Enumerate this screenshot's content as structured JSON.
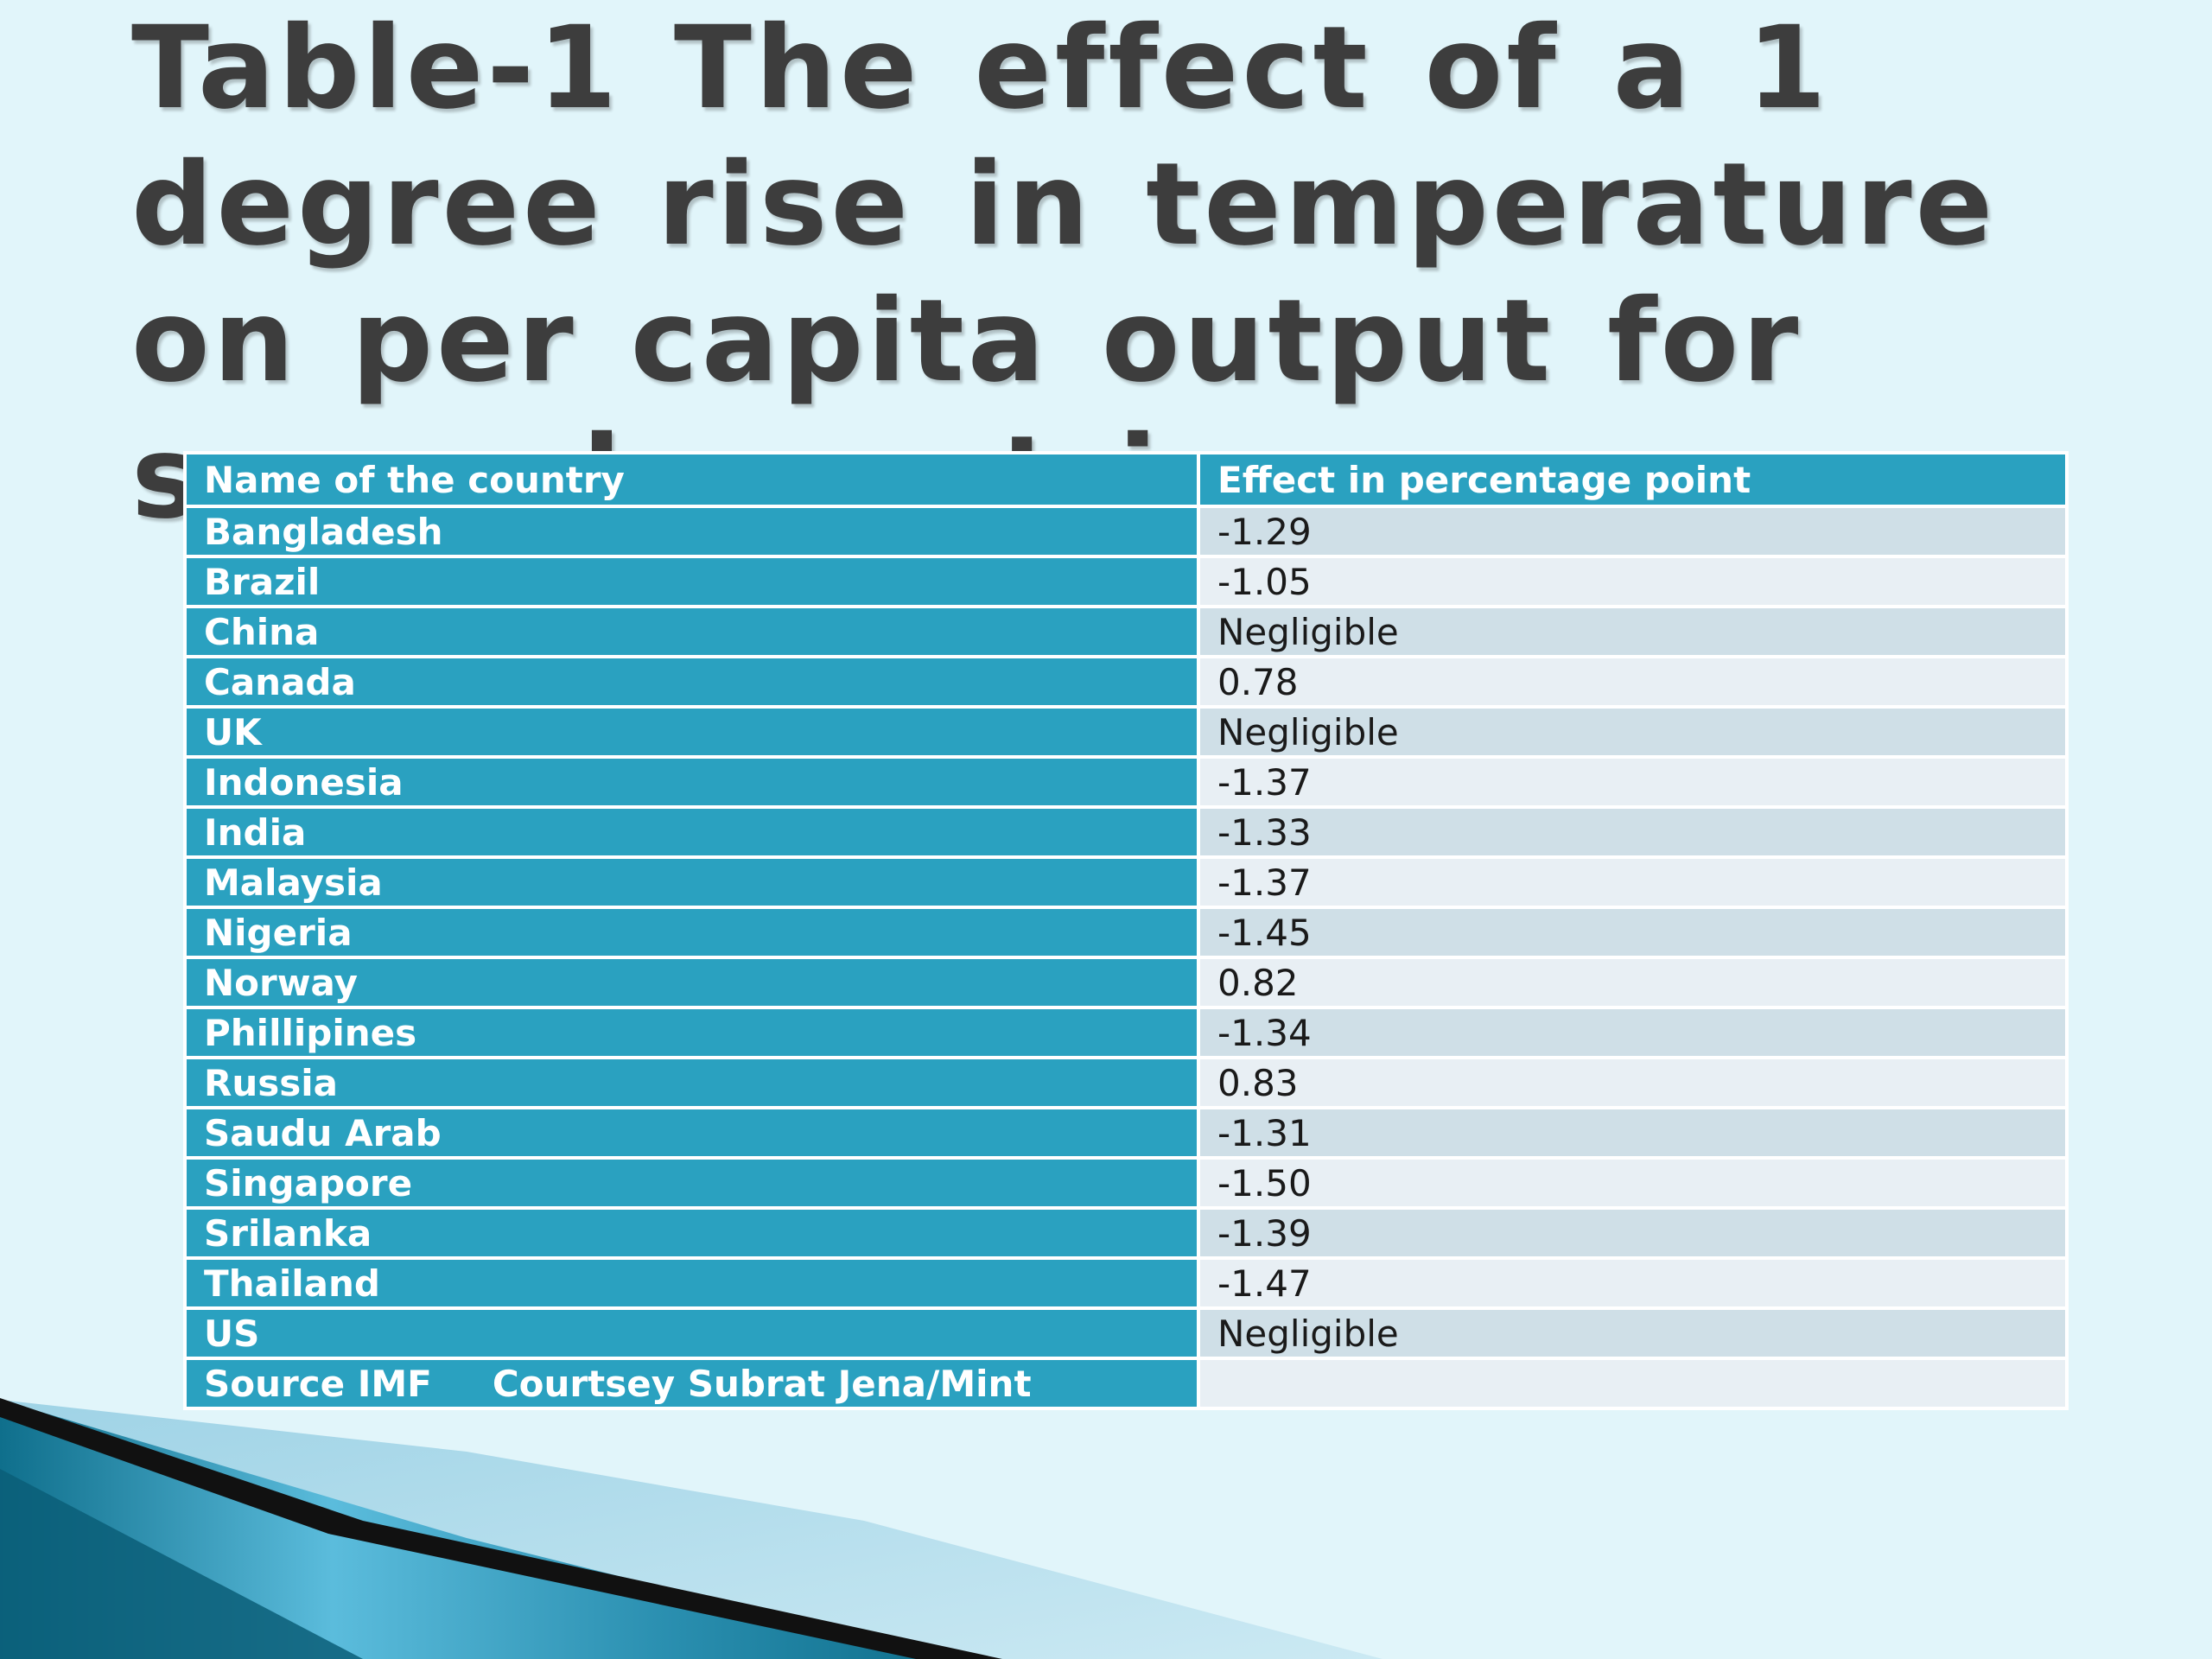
{
  "title": "Table-1  The effect of a 1 degree rise in temperature on per capita output for several countries.",
  "table": {
    "columns": [
      "Name  of  the  country",
      "Effect  in  percentage point"
    ],
    "rows": [
      {
        "country": "Bangladesh",
        "effect": "-1.29"
      },
      {
        "country": "Brazil",
        "effect": "-1.05"
      },
      {
        "country": "China",
        "effect": "Negligible"
      },
      {
        "country": "Canada",
        "effect": "0.78"
      },
      {
        "country": "UK",
        "effect": "Negligible"
      },
      {
        "country": "Indonesia",
        "effect": "-1.37"
      },
      {
        "country": "India",
        "effect": "-1.33"
      },
      {
        "country": "Malaysia",
        "effect": "-1.37"
      },
      {
        "country": "Nigeria",
        "effect": "-1.45"
      },
      {
        "country": "Norway",
        "effect": "0.82"
      },
      {
        "country": "Phillipines",
        "effect": "-1.34"
      },
      {
        "country": "Russia",
        "effect": "0.83"
      },
      {
        "country": "Saudu Arab",
        "effect": "-1.31"
      },
      {
        "country": "Singapore",
        "effect": "-1.50"
      },
      {
        "country": "Srilanka",
        "effect": "-1.39"
      },
      {
        "country": "Thailand",
        "effect": "-1.47"
      },
      {
        "country": "US",
        "effect": "Negligible"
      }
    ],
    "source_label": "Source IMF",
    "source_credit": "Courtsey Subrat  Jena/Mint"
  },
  "colors": {
    "background": "#e1f5fa",
    "header_and_country_cells": "#2aa1c0",
    "value_cell_dark": "#cfdfe7",
    "value_cell_light": "#e8eff4",
    "title_text": "#3d3d3d"
  }
}
